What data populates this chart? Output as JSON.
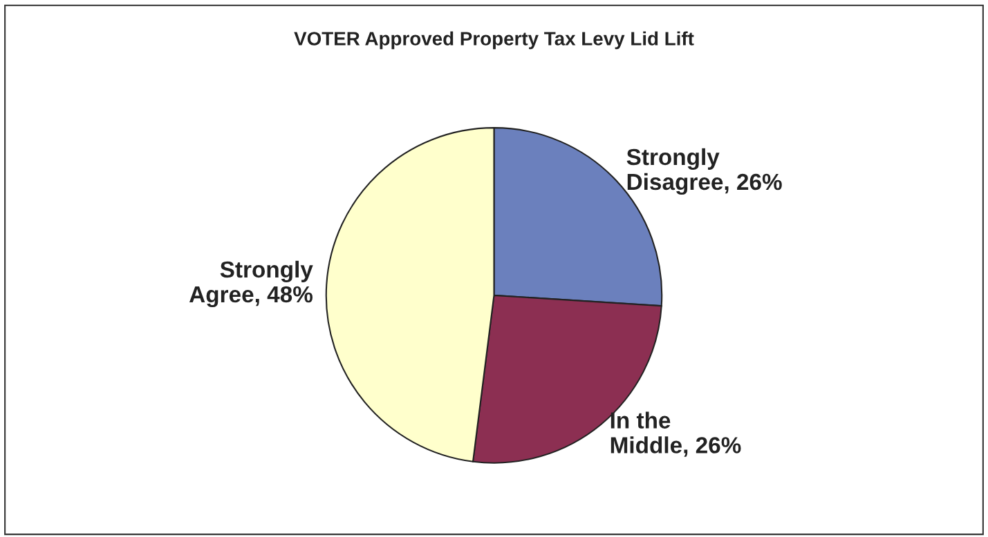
{
  "chart_data": {
    "type": "pie",
    "title": "VOTER Approved Property Tax Levy Lid Lift",
    "categories": [
      "Strongly Disagree",
      "In the Middle",
      "Strongly Agree"
    ],
    "values": [
      26,
      26,
      48
    ],
    "value_labels": [
      "26%",
      "26%",
      "48%"
    ],
    "colors": [
      "#6b80bd",
      "#8c2f52",
      "#ffffcc"
    ]
  }
}
